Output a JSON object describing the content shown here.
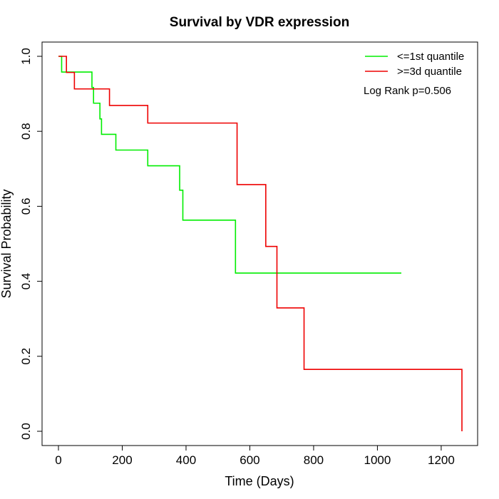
{
  "chart_data": {
    "type": "line",
    "title": "Survival by VDR expression",
    "xlabel": "Time (Days)",
    "ylabel": "Survival Probability",
    "xlim": [
      0,
      1265
    ],
    "ylim": [
      0,
      1
    ],
    "x_ticks": [
      0,
      200,
      400,
      600,
      800,
      1000,
      1200
    ],
    "x_tick_labels": [
      "0",
      "200",
      "400",
      "600",
      "800",
      "1000",
      "1200"
    ],
    "y_ticks": [
      0,
      0.2,
      0.4,
      0.6,
      0.8,
      1.0
    ],
    "y_tick_labels": [
      "0.0",
      "0.2",
      "0.4",
      "0.6",
      "0.8",
      "1.0"
    ],
    "grid": false,
    "legend_position": "top-right",
    "annotation": "Log Rank p=0.506",
    "series": [
      {
        "name": "<=1st quantile",
        "color": "#00ee00",
        "step": true,
        "x": [
          0,
          10,
          105,
          110,
          130,
          135,
          180,
          280,
          380,
          390,
          555,
          1075
        ],
        "y": [
          1.0,
          0.958,
          0.917,
          0.875,
          0.833,
          0.792,
          0.75,
          0.708,
          0.643,
          0.563,
          0.422,
          0.422
        ]
      },
      {
        "name": ">=3d quantile",
        "color": "#ee0000",
        "step": true,
        "x": [
          0,
          25,
          50,
          160,
          280,
          560,
          650,
          685,
          770,
          1265
        ],
        "y": [
          1.0,
          0.957,
          0.913,
          0.869,
          0.822,
          0.658,
          0.493,
          0.329,
          0.165,
          0.0
        ]
      }
    ]
  }
}
